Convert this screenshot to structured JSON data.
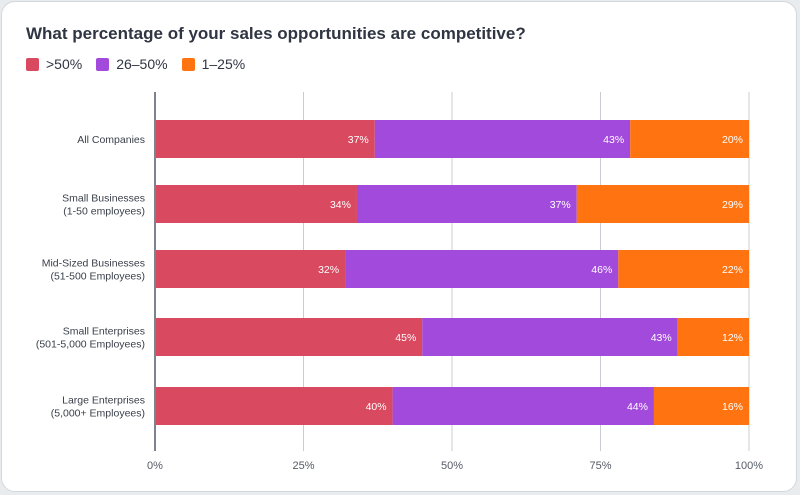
{
  "chart_data": {
    "type": "bar",
    "orientation": "horizontal",
    "stacked": true,
    "title": "What percentage of your sales opportunities are competitive?",
    "categories": [
      [
        "All Companies"
      ],
      [
        "Small Businesses",
        "(1-50 employees)"
      ],
      [
        "Mid-Sized Businesses",
        "(51-500 Employees)"
      ],
      [
        "Small Enterprises",
        "(501-5,000 Employees)"
      ],
      [
        "Large Enterprises",
        "(5,000+ Employees)"
      ]
    ],
    "series": [
      {
        "name": ">50%",
        "color": "#d9495f",
        "values": [
          37,
          34,
          32,
          45,
          40
        ]
      },
      {
        "name": "26–50%",
        "color": "#a24adb",
        "values": [
          43,
          37,
          46,
          43,
          44
        ]
      },
      {
        "name": "1–25%",
        "color": "#ff7410",
        "values": [
          20,
          29,
          22,
          12,
          16
        ]
      }
    ],
    "value_suffix": "%",
    "xlim": [
      0,
      100
    ],
    "xticks": [
      "0%",
      "25%",
      "50%",
      "75%",
      "100%"
    ],
    "grid": true,
    "legend_position": "top-left"
  }
}
